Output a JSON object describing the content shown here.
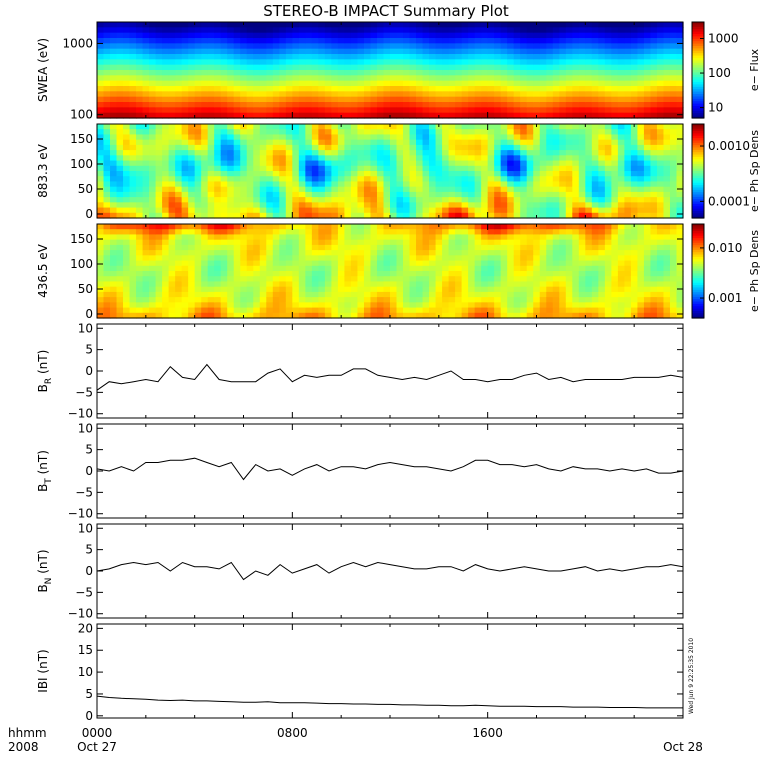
{
  "title": "STEREO-B IMPACT Summary Plot",
  "x_axis": {
    "label_top": "hhmm",
    "label_bottom": "2008",
    "ticks": [
      {
        "hour": 0,
        "top": "0000",
        "bottom": "Oct 27"
      },
      {
        "hour": 8,
        "top": "0800",
        "bottom": ""
      },
      {
        "hour": 16,
        "top": "1600",
        "bottom": ""
      },
      {
        "hour": 24,
        "top": "",
        "bottom": "Oct 28"
      }
    ]
  },
  "timestamp": "Wed Jun  9 22:25:35 2010",
  "colors": {
    "trace": "#000000",
    "missing": "#ffffff"
  },
  "panels": [
    {
      "id": "swea",
      "kind": "spectrogram",
      "ylabel": "SWEA (eV)",
      "scale": "log",
      "ylim": [
        90,
        2000
      ],
      "yticks": [
        {
          "v": 100,
          "label": "100"
        },
        {
          "v": 1000,
          "label": "1000"
        }
      ],
      "colorbar": {
        "label": "e− Flux",
        "scale": "log",
        "range": [
          5,
          3000
        ],
        "ticks": [
          {
            "v": 10,
            "label": "10"
          },
          {
            "v": 100,
            "label": "100"
          },
          {
            "v": 1000,
            "label": "1000"
          }
        ]
      }
    },
    {
      "id": "pad883",
      "kind": "spectrogram",
      "ylabel": "883.3 eV",
      "scale": "linear",
      "ylim": [
        -8,
        180
      ],
      "yticks": [
        {
          "v": 0,
          "label": "0"
        },
        {
          "v": 50,
          "label": "50"
        },
        {
          "v": 100,
          "label": "100"
        },
        {
          "v": 150,
          "label": "150"
        }
      ],
      "colorbar": {
        "label": "e− Ph Sp Dens",
        "scale": "log",
        "range": [
          5e-05,
          0.0025
        ],
        "ticks": [
          {
            "v": 0.0001,
            "label": "0.0001"
          },
          {
            "v": 0.001,
            "label": "0.0010"
          }
        ]
      }
    },
    {
      "id": "pad436",
      "kind": "spectrogram",
      "ylabel": "436.5 eV",
      "scale": "linear",
      "ylim": [
        -8,
        180
      ],
      "yticks": [
        {
          "v": 0,
          "label": "0"
        },
        {
          "v": 50,
          "label": "50"
        },
        {
          "v": 100,
          "label": "100"
        },
        {
          "v": 150,
          "label": "150"
        }
      ],
      "colorbar": {
        "label": "e− Ph Sp Dens",
        "scale": "log",
        "range": [
          0.0004,
          0.03
        ],
        "ticks": [
          {
            "v": 0.001,
            "label": "0.001"
          },
          {
            "v": 0.01,
            "label": "0.010"
          }
        ]
      }
    },
    {
      "id": "br",
      "kind": "line",
      "ylabel": "B",
      "ysub": "R",
      "yunit": " (nT)",
      "ylim": [
        -11,
        11
      ],
      "yticks": [
        {
          "v": 10,
          "label": "10"
        },
        {
          "v": 5,
          "label": "5"
        },
        {
          "v": 0,
          "label": "0"
        },
        {
          "v": -5,
          "label": "−5"
        },
        {
          "v": -10,
          "label": "−10"
        }
      ]
    },
    {
      "id": "bt",
      "kind": "line",
      "ylabel": "B",
      "ysub": "T",
      "yunit": " (nT)",
      "ylim": [
        -11,
        11
      ],
      "yticks": [
        {
          "v": 10,
          "label": "10"
        },
        {
          "v": 5,
          "label": "5"
        },
        {
          "v": 0,
          "label": "0"
        },
        {
          "v": -5,
          "label": "−5"
        },
        {
          "v": -10,
          "label": "−10"
        }
      ]
    },
    {
      "id": "bn",
      "kind": "line",
      "ylabel": "B",
      "ysub": "N",
      "yunit": " (nT)",
      "ylim": [
        -11,
        11
      ],
      "yticks": [
        {
          "v": 10,
          "label": "10"
        },
        {
          "v": 5,
          "label": "5"
        },
        {
          "v": 0,
          "label": "0"
        },
        {
          "v": -5,
          "label": "−5"
        },
        {
          "v": -10,
          "label": "−10"
        }
      ]
    },
    {
      "id": "bmag",
      "kind": "line",
      "ylabel": "IBI",
      "ysub": "",
      "yunit": " (nT)",
      "ylim": [
        -0.5,
        21
      ],
      "yticks": [
        {
          "v": 20,
          "label": "20"
        },
        {
          "v": 15,
          "label": "15"
        },
        {
          "v": 10,
          "label": "10"
        },
        {
          "v": 5,
          "label": "5"
        },
        {
          "v": 0,
          "label": "0"
        }
      ]
    }
  ],
  "chart_data": [
    {
      "type": "heatmap",
      "title": "STEREO-B IMPACT Summary Plot",
      "xlabel": "hhmm",
      "ylabel": "SWEA (eV)",
      "colorbar_label": "e− Flux",
      "x_range_hours": [
        0,
        24
      ],
      "energy_eV": [
        100,
        200,
        300,
        500,
        700,
        1000,
        1500,
        2000
      ],
      "typical_flux": [
        1500,
        800,
        400,
        120,
        40,
        15,
        8,
        6
      ]
    },
    {
      "type": "heatmap",
      "ylabel": "883.3 eV",
      "colorbar_label": "e− Ph Sp Dens",
      "x_range_hours": [
        0,
        24
      ],
      "pitch_angle_deg": [
        0,
        30,
        60,
        90,
        120,
        150,
        180
      ],
      "typical_psd": [
        0.0008,
        0.0006,
        0.0004,
        0.0002,
        0.0003,
        0.0005,
        0.0007
      ]
    },
    {
      "type": "heatmap",
      "ylabel": "436.5 eV",
      "colorbar_label": "e− Ph Sp Dens",
      "x_range_hours": [
        0,
        24
      ],
      "pitch_angle_deg": [
        0,
        30,
        60,
        90,
        120,
        150,
        180
      ],
      "typical_psd": [
        0.01,
        0.006,
        0.005,
        0.006,
        0.007,
        0.01,
        0.015
      ]
    },
    {
      "type": "line",
      "ylabel": "B_R (nT)",
      "ylim": [
        -10,
        10
      ],
      "x": [
        0,
        0.5,
        1,
        1.5,
        2,
        2.5,
        3,
        3.5,
        4,
        4.5,
        5,
        5.5,
        6,
        6.5,
        7,
        7.5,
        8,
        8.5,
        9,
        9.5,
        10,
        10.5,
        11,
        11.5,
        12,
        12.5,
        13,
        13.5,
        14,
        14.5,
        15,
        15.5,
        16,
        16.5,
        17,
        17.5,
        18,
        18.5,
        19,
        19.5,
        20,
        20.5,
        21,
        21.5,
        22,
        22.5,
        23,
        23.5,
        24
      ],
      "y": [
        -4.5,
        -2.5,
        -3,
        -2.5,
        -2,
        -2.5,
        1,
        -1.5,
        -2,
        1.5,
        -2,
        -2.5,
        -2.5,
        -2.5,
        -0.5,
        0.5,
        -2.5,
        -1,
        -1.5,
        -1,
        -1,
        0.5,
        0.5,
        -1,
        -1.5,
        -2,
        -1.5,
        -2,
        -1,
        0,
        -2,
        -2,
        -2.5,
        -2,
        -2,
        -1,
        -0.5,
        -2,
        -1.5,
        -2.5,
        -2,
        -2,
        -2,
        -2,
        -1.5,
        -1.5,
        -1.5,
        -1,
        -1.5
      ]
    },
    {
      "type": "line",
      "ylabel": "B_T (nT)",
      "ylim": [
        -10,
        10
      ],
      "x": [
        0,
        0.5,
        1,
        1.5,
        2,
        2.5,
        3,
        3.5,
        4,
        4.5,
        5,
        5.5,
        6,
        6.5,
        7,
        7.5,
        8,
        8.5,
        9,
        9.5,
        10,
        10.5,
        11,
        11.5,
        12,
        12.5,
        13,
        13.5,
        14,
        14.5,
        15,
        15.5,
        16,
        16.5,
        17,
        17.5,
        18,
        18.5,
        19,
        19.5,
        20,
        20.5,
        21,
        21.5,
        22,
        22.5,
        23,
        23.5,
        24
      ],
      "y": [
        0.5,
        0,
        1,
        0,
        2,
        2,
        2.5,
        2.5,
        3,
        2,
        1,
        2,
        -2,
        1.5,
        0,
        0.5,
        -1,
        0.5,
        1.5,
        0,
        1,
        1,
        0.5,
        1.5,
        2,
        1.5,
        1,
        1,
        0.5,
        0,
        1,
        2.5,
        2.5,
        1.5,
        1.5,
        1,
        1.5,
        0.5,
        0,
        1,
        0.5,
        0.5,
        0,
        0.5,
        0,
        0.5,
        -0.5,
        -0.5,
        0
      ]
    },
    {
      "type": "line",
      "ylabel": "B_N (nT)",
      "ylim": [
        -10,
        10
      ],
      "x": [
        0,
        0.5,
        1,
        1.5,
        2,
        2.5,
        3,
        3.5,
        4,
        4.5,
        5,
        5.5,
        6,
        6.5,
        7,
        7.5,
        8,
        8.5,
        9,
        9.5,
        10,
        10.5,
        11,
        11.5,
        12,
        12.5,
        13,
        13.5,
        14,
        14.5,
        15,
        15.5,
        16,
        16.5,
        17,
        17.5,
        18,
        18.5,
        19,
        19.5,
        20,
        20.5,
        21,
        21.5,
        22,
        22.5,
        23,
        23.5,
        24
      ],
      "y": [
        0,
        0.5,
        1.5,
        2,
        1.5,
        2,
        0,
        2,
        1,
        1,
        0.5,
        2,
        -2,
        0,
        -1,
        1.5,
        -0.5,
        0.5,
        1.5,
        -0.5,
        1,
        2,
        1,
        2,
        1.5,
        1,
        0.5,
        0.5,
        1,
        1,
        0,
        1.5,
        0.5,
        0,
        0.5,
        1,
        0.5,
        0,
        0,
        0.5,
        1,
        0,
        0.5,
        0,
        0.5,
        1,
        1,
        1.5,
        1
      ]
    },
    {
      "type": "line",
      "ylabel": "IBI (nT)",
      "ylim": [
        0,
        20
      ],
      "x": [
        0,
        0.5,
        1,
        1.5,
        2,
        2.5,
        3,
        3.5,
        4,
        4.5,
        5,
        5.5,
        6,
        6.5,
        7,
        7.5,
        8,
        8.5,
        9,
        9.5,
        10,
        10.5,
        11,
        11.5,
        12,
        12.5,
        13,
        13.5,
        14,
        14.5,
        15,
        15.5,
        16,
        16.5,
        17,
        17.5,
        18,
        18.5,
        19,
        19.5,
        20,
        20.5,
        21,
        21.5,
        22,
        22.5,
        23,
        23.5,
        24
      ],
      "y": [
        4.5,
        4.2,
        4,
        3.9,
        3.8,
        3.6,
        3.5,
        3.6,
        3.4,
        3.4,
        3.3,
        3.2,
        3.1,
        3.1,
        3.2,
        3,
        3,
        3,
        2.9,
        2.8,
        2.8,
        2.7,
        2.7,
        2.6,
        2.6,
        2.5,
        2.5,
        2.4,
        2.4,
        2.3,
        2.3,
        2.4,
        2.3,
        2.2,
        2.2,
        2.2,
        2.1,
        2.1,
        2.1,
        2,
        2,
        2,
        1.9,
        1.9,
        1.9,
        1.8,
        1.8,
        1.8,
        1.8
      ]
    }
  ]
}
